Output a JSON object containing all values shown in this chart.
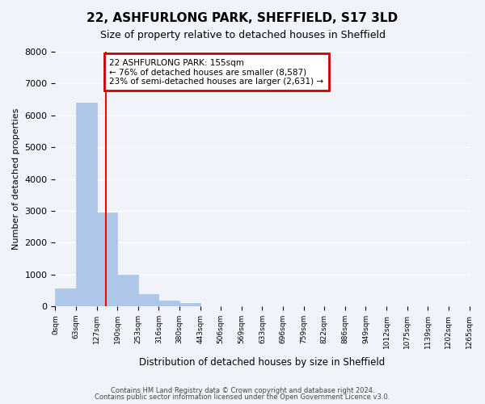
{
  "title": "22, ASHFURLONG PARK, SHEFFIELD, S17 3LD",
  "subtitle": "Size of property relative to detached houses in Sheffield",
  "xlabel": "Distribution of detached houses by size in Sheffield",
  "ylabel": "Number of detached properties",
  "bin_labels": [
    "0sqm",
    "63sqm",
    "127sqm",
    "190sqm",
    "253sqm",
    "316sqm",
    "380sqm",
    "443sqm",
    "506sqm",
    "569sqm",
    "633sqm",
    "696sqm",
    "759sqm",
    "822sqm",
    "886sqm",
    "949sqm",
    "1012sqm",
    "1075sqm",
    "1139sqm",
    "1202sqm",
    "1265sqm"
  ],
  "bar_values": [
    560,
    6390,
    2940,
    990,
    380,
    175,
    90,
    0,
    0,
    0,
    0,
    0,
    0,
    0,
    0,
    0,
    0,
    0,
    0,
    0
  ],
  "bar_color": "#aec6e8",
  "property_line_x": 155,
  "ylim": [
    0,
    8000
  ],
  "yticks": [
    0,
    1000,
    2000,
    3000,
    4000,
    5000,
    6000,
    7000,
    8000
  ],
  "annotation_title": "22 ASHFURLONG PARK: 155sqm",
  "annotation_line1": "← 76% of detached houses are smaller (8,587)",
  "annotation_line2": "23% of semi-detached houses are larger (2,631) →",
  "footer_line1": "Contains HM Land Registry data © Crown copyright and database right 2024.",
  "footer_line2": "Contains public sector information licensed under the Open Government Licence v3.0.",
  "background_color": "#f0f4fa",
  "plot_background": "#f0f4fa",
  "grid_color": "#ffffff",
  "annotation_box_color": "#cc0000",
  "num_bins": 20,
  "bin_width": 63
}
